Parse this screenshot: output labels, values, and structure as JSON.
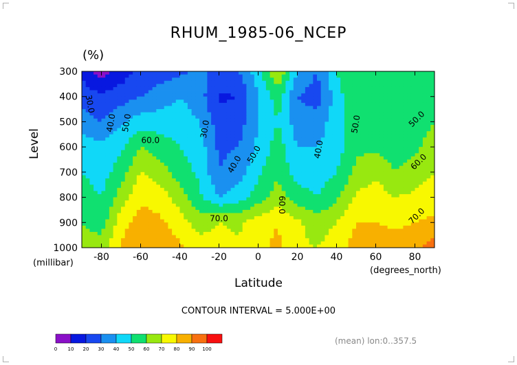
{
  "chart_data": {
    "type": "heatmap",
    "plot_kind": "filled contour",
    "title": "RHUM_1985-06_NCEP",
    "units": "(%)",
    "xlabel": "Latitude",
    "xunits": "(degrees_north)",
    "ylabel": "Level",
    "yunits": "(millibar)",
    "xlim": [
      -90,
      90
    ],
    "ylim": [
      1000,
      300
    ],
    "x_ticks": [
      "-80",
      "-60",
      "-40",
      "-20",
      "0",
      "20",
      "40",
      "60",
      "80"
    ],
    "y_ticks": [
      "300",
      "400",
      "500",
      "600",
      "700",
      "800",
      "900",
      "1000"
    ],
    "contour_interval_text": "CONTOUR INTERVAL = 5.000E+00",
    "footnote": "(mean) lon:0..357.5",
    "colorbar": {
      "labels": [
        "0",
        "10",
        "20",
        "30",
        "40",
        "50",
        "60",
        "70",
        "80",
        "90",
        "100"
      ],
      "colors": [
        "#8a10c8",
        "#0818e0",
        "#1848f0",
        "#1a90f0",
        "#10d8f8",
        "#10e070",
        "#98e810",
        "#f8f800",
        "#f8b000",
        "#f87010",
        "#f81010"
      ]
    },
    "contour_labels": [
      "30.0",
      "40.0",
      "50.0",
      "60.0",
      "30.0",
      "40.0",
      "50.0",
      "70.0",
      "60.0",
      "40.0",
      "50.0",
      "50.0",
      "60.0",
      "70.0"
    ],
    "levels": [
      300,
      400,
      500,
      600,
      700,
      800,
      900,
      1000
    ],
    "latitudes": [
      -90,
      -80,
      -70,
      -60,
      -50,
      -40,
      -30,
      -20,
      -10,
      0,
      10,
      20,
      30,
      40,
      50,
      60,
      70,
      80,
      90
    ],
    "values": [
      [
        18,
        5,
        15,
        22,
        25,
        28,
        32,
        28,
        30,
        45,
        70,
        40,
        30,
        50,
        60,
        60,
        60,
        55,
        55
      ],
      [
        25,
        22,
        25,
        30,
        35,
        40,
        35,
        18,
        20,
        40,
        55,
        30,
        25,
        45,
        60,
        55,
        55,
        55,
        58
      ],
      [
        35,
        30,
        38,
        45,
        45,
        45,
        40,
        25,
        25,
        40,
        50,
        35,
        35,
        45,
        55,
        55,
        52,
        55,
        60
      ],
      [
        45,
        42,
        48,
        60,
        55,
        50,
        45,
        28,
        30,
        42,
        55,
        40,
        40,
        45,
        58,
        58,
        55,
        58,
        65
      ],
      [
        50,
        45,
        55,
        70,
        65,
        55,
        48,
        30,
        35,
        48,
        58,
        45,
        45,
        50,
        62,
        68,
        60,
        65,
        70
      ],
      [
        55,
        50,
        65,
        78,
        75,
        65,
        52,
        40,
        45,
        55,
        65,
        55,
        50,
        58,
        72,
        75,
        70,
        72,
        75
      ],
      [
        60,
        55,
        75,
        85,
        82,
        75,
        65,
        70,
        68,
        75,
        80,
        72,
        65,
        70,
        80,
        80,
        78,
        80,
        82
      ],
      [
        65,
        65,
        82,
        90,
        86,
        82,
        75,
        75,
        72,
        78,
        82,
        72,
        70,
        75,
        85,
        88,
        85,
        88,
        95
      ]
    ]
  }
}
